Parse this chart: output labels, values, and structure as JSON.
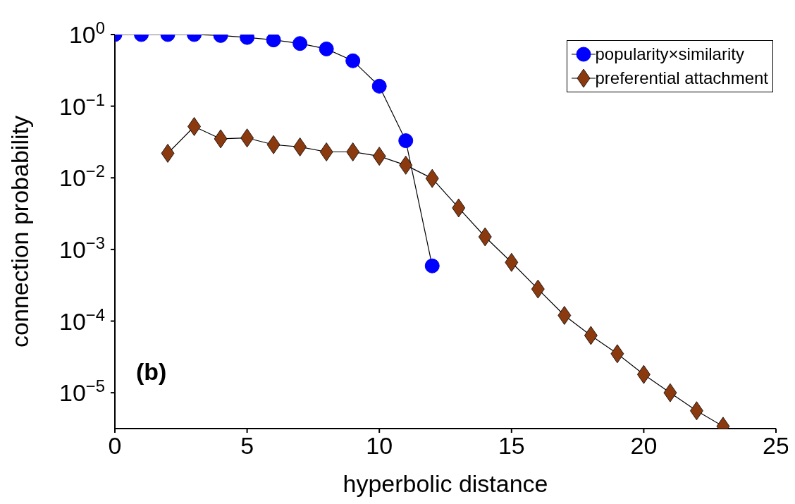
{
  "chart_data": {
    "type": "line",
    "xlabel": "hyperbolic distance",
    "ylabel": "connection probability",
    "annotations": [
      "(b)"
    ],
    "log": "y",
    "grid": false,
    "legend": "top right",
    "xlim": [
      0,
      25
    ],
    "xticks": [
      0,
      5,
      10,
      15,
      20,
      25
    ],
    "ylim": [
      3.16e-06,
      1
    ],
    "yticks": [
      {
        "value": 1,
        "label": "10$^{0}$"
      },
      {
        "value": 0.1,
        "label": "10$^{−1}$"
      },
      {
        "value": 0.01,
        "label": "10$^{−2}$"
      },
      {
        "value": 0.001,
        "label": "10$^{−3}$"
      },
      {
        "value": 0.0001,
        "label": "10$^{−4}$"
      },
      {
        "value": 1e-05,
        "label": "10$^{−5}$"
      }
    ],
    "series": [
      {
        "name": "popularity×similarity",
        "color": "#0000ff",
        "marker": "circle",
        "x": [
          0,
          1,
          2,
          3,
          4,
          5,
          6,
          7,
          8,
          9,
          10,
          11,
          12
        ],
        "values": [
          1,
          1,
          1,
          1,
          0.97,
          0.91,
          0.84,
          0.75,
          0.63,
          0.43,
          0.19,
          0.033,
          0.00059
        ]
      },
      {
        "name": "preferential attachment",
        "color": "#8b3a0f",
        "marker": "diamond",
        "x": [
          2,
          3,
          4,
          5,
          6,
          7,
          8,
          9,
          10,
          11,
          12,
          13,
          14,
          15,
          16,
          17,
          18,
          19,
          20,
          21,
          22,
          23
        ],
        "values": [
          0.022,
          0.052,
          0.035,
          0.036,
          0.029,
          0.027,
          0.023,
          0.023,
          0.02,
          0.015,
          0.0098,
          0.0038,
          0.0015,
          0.00066,
          0.00028,
          0.00012,
          6.3e-05,
          3.5e-05,
          1.8e-05,
          1e-05,
          5.6e-06,
          3.4e-06
        ]
      }
    ]
  }
}
